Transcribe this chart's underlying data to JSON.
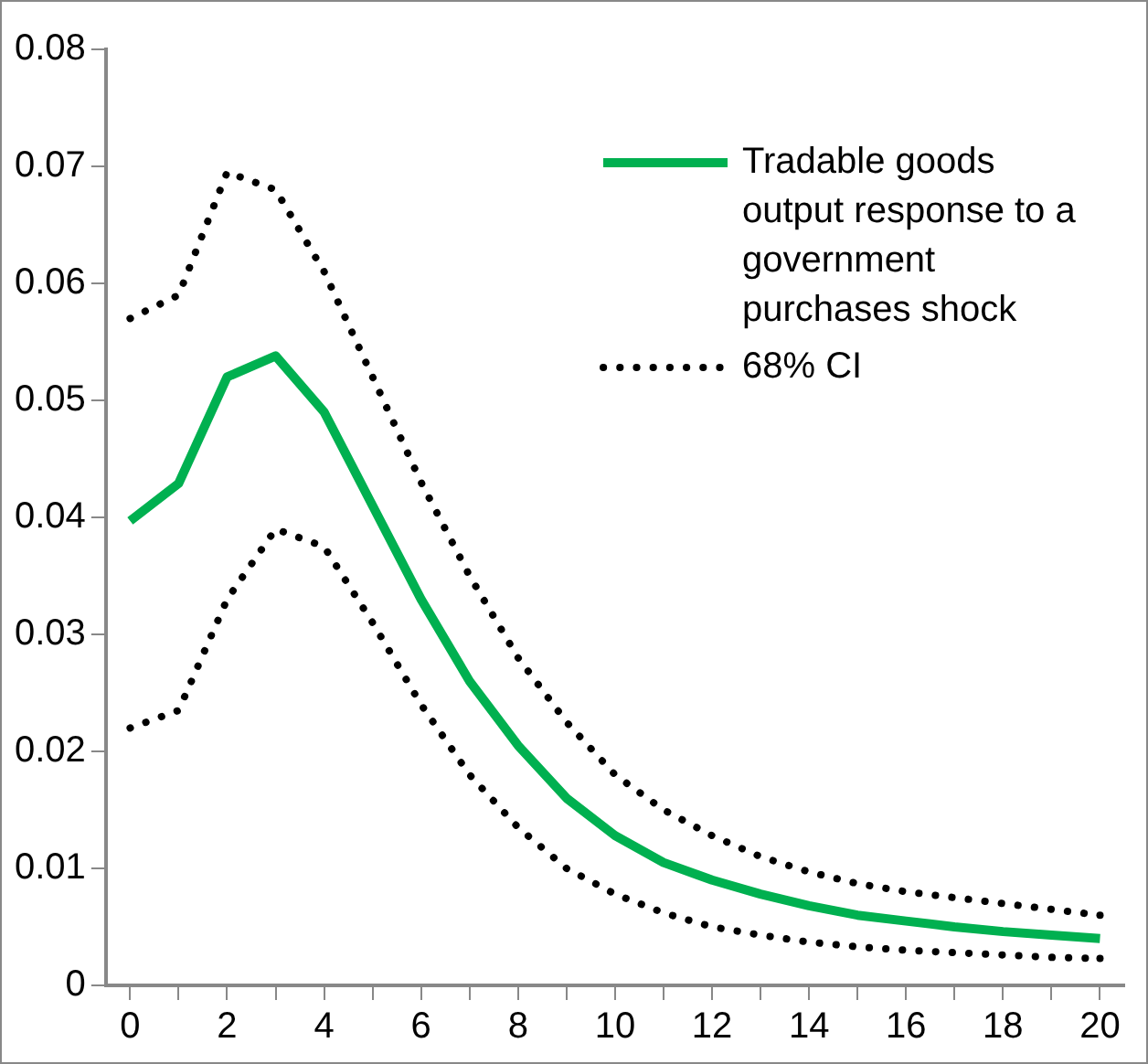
{
  "chart_data": {
    "type": "line",
    "x": [
      0,
      1,
      2,
      3,
      4,
      5,
      6,
      7,
      8,
      9,
      10,
      11,
      12,
      13,
      14,
      15,
      16,
      17,
      18,
      19,
      20
    ],
    "series": [
      {
        "name": "Tradable goods output response to a government purchases shock",
        "color": "#00b050",
        "line_style": "solid",
        "values": [
          0.0397,
          0.0429,
          0.052,
          0.0538,
          0.049,
          0.041,
          0.033,
          0.026,
          0.0205,
          0.016,
          0.0128,
          0.0105,
          0.009,
          0.0078,
          0.0068,
          0.006,
          0.0055,
          0.005,
          0.0046,
          0.0043,
          0.004
        ]
      },
      {
        "name": "68% CI",
        "color": "#000000",
        "line_style": "dotted",
        "values": [
          0.057,
          0.059,
          0.0695,
          0.068,
          0.061,
          0.052,
          0.043,
          0.035,
          0.028,
          0.0225,
          0.018,
          0.015,
          0.0128,
          0.011,
          0.0097,
          0.0087,
          0.008,
          0.0075,
          0.007,
          0.0065,
          0.006
        ]
      },
      {
        "color": "#000000",
        "line_style": "dotted",
        "values": [
          0.022,
          0.0235,
          0.033,
          0.039,
          0.0375,
          0.031,
          0.024,
          0.018,
          0.0135,
          0.01,
          0.0078,
          0.0062,
          0.005,
          0.0043,
          0.0037,
          0.0033,
          0.003,
          0.0028,
          0.0026,
          0.0024,
          0.0023
        ]
      }
    ],
    "xlim": [
      -0.5,
      20.5
    ],
    "xticks": [
      0,
      {
        "value": 1,
        "label": null
      },
      2,
      {
        "value": 3,
        "label": null
      },
      4,
      {
        "value": 5,
        "label": null
      },
      6,
      {
        "value": 7,
        "label": null
      },
      8,
      {
        "value": 9,
        "label": null
      },
      10,
      {
        "value": 11,
        "label": null
      },
      12,
      {
        "value": 13,
        "label": null
      },
      14,
      {
        "value": 15,
        "label": null
      },
      16,
      {
        "value": 17,
        "label": null
      },
      18,
      {
        "value": 19,
        "label": null
      },
      20
    ],
    "ylim": [
      0,
      0.08
    ],
    "yticks": [
      0,
      0.01,
      0.02,
      0.03,
      0.04,
      0.05,
      0.06,
      0.07,
      0.08
    ],
    "grid": false,
    "legend": "top right",
    "marker": "none"
  }
}
